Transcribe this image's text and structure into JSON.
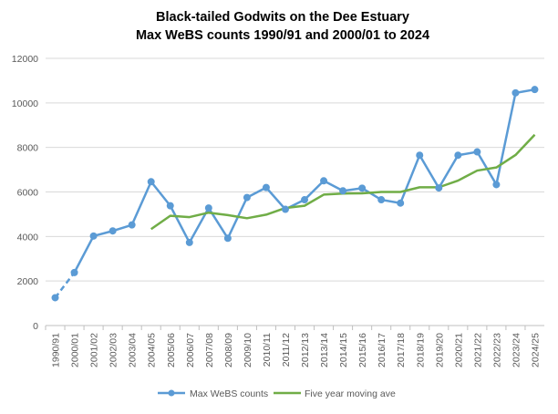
{
  "chart_data": {
    "type": "line",
    "title": [
      "Black-tailed Godwits on the Dee Estuary",
      "Max WeBS counts 1990/91 and 2000/01 to 2024"
    ],
    "xlabel": "",
    "ylabel": "",
    "ylim": [
      0,
      12000
    ],
    "yticks": [
      "0",
      "2000",
      "4000",
      "6000",
      "8000",
      "10000",
      "12000"
    ],
    "grid": "horizontal",
    "legend_position": "bottom",
    "categories": [
      "1990/91",
      "2000/01",
      "2001/02",
      "2002/03",
      "2003/04",
      "2004/05",
      "2005/06",
      "2006/07",
      "2007/08",
      "2008/09",
      "2009/10",
      "2010/11",
      "2011/12",
      "2012/13",
      "2013/14",
      "2014/15",
      "2015/16",
      "2016/17",
      "2017/18",
      "2018/19",
      "2019/20",
      "2020/21",
      "2021/22",
      "2022/23",
      "2023/24",
      "2024/25"
    ],
    "series": [
      {
        "name": "Max WeBS counts",
        "color": "#5b9bd5",
        "marker": "circle",
        "dashed_first_segment": true,
        "values": [
          1250,
          2380,
          4020,
          4250,
          4520,
          6460,
          5380,
          3730,
          5280,
          3920,
          5750,
          6200,
          5220,
          5650,
          6500,
          6050,
          6170,
          5650,
          5500,
          7650,
          6180,
          7650,
          7800,
          6330,
          10450,
          10600
        ]
      },
      {
        "name": "Five year moving ave",
        "color": "#70ad47",
        "marker": "none",
        "values": [
          null,
          null,
          null,
          null,
          null,
          4330,
          4930,
          4870,
          5070,
          4960,
          4820,
          4980,
          5280,
          5380,
          5880,
          5930,
          5940,
          6000,
          6000,
          6210,
          6210,
          6510,
          6960,
          7100,
          7660,
          8570
        ]
      }
    ]
  }
}
